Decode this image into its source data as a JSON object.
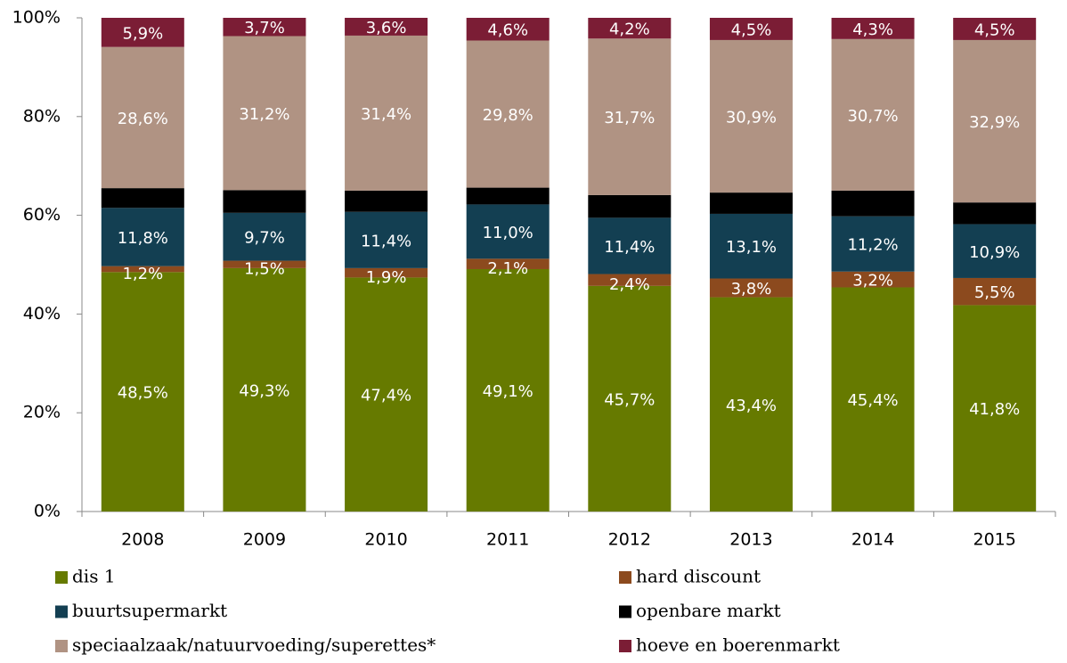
{
  "chart_data": {
    "type": "stacked_bar",
    "categories": [
      "2008",
      "2009",
      "2010",
      "2011",
      "2012",
      "2013",
      "2014",
      "2015"
    ],
    "series": [
      {
        "name": "dis 1",
        "color": "#667a00",
        "values": [
          48.5,
          49.3,
          47.4,
          49.1,
          45.7,
          43.4,
          45.4,
          41.8
        ],
        "value_labels": [
          "48,5%",
          "49,3%",
          "47,4%",
          "49,1%",
          "45,7%",
          "43,4%",
          "45,4%",
          "41,8%"
        ]
      },
      {
        "name": "hard discount",
        "color": "#8c4a1e",
        "values": [
          1.2,
          1.5,
          1.9,
          2.1,
          2.4,
          3.8,
          3.2,
          5.5
        ],
        "value_labels": [
          "1,2%",
          "1,5%",
          "1,9%",
          "2,1%",
          "2,4%",
          "3,8%",
          "3,2%",
          "5,5%"
        ]
      },
      {
        "name": "buurtsupermarkt",
        "color": "#133f52",
        "values": [
          11.8,
          9.7,
          11.4,
          11.0,
          11.4,
          13.1,
          11.2,
          10.9
        ],
        "value_labels": [
          "11,8%",
          "9,7%",
          "11,4%",
          "11,0%",
          "11,4%",
          "13,1%",
          "11,2%",
          "10,9%"
        ]
      },
      {
        "name": "openbare markt",
        "color": "#000000",
        "values": [
          4.0,
          4.6,
          4.3,
          3.4,
          4.6,
          4.3,
          5.2,
          4.4
        ]
      },
      {
        "name": "speciaalzaak/natuurvoeding/superettes*",
        "color": "#b09383",
        "values": [
          28.6,
          31.2,
          31.4,
          29.8,
          31.7,
          30.9,
          30.7,
          32.9
        ],
        "value_labels": [
          "28,6%",
          "31,2%",
          "31,4%",
          "29,8%",
          "31,7%",
          "30,9%",
          "30,7%",
          "32,9%"
        ]
      },
      {
        "name": "hoeve en boerenmarkt",
        "color": "#7b1d35",
        "values": [
          5.9,
          3.7,
          3.6,
          4.6,
          4.2,
          4.5,
          4.3,
          4.5
        ],
        "value_labels": [
          "5,9%",
          "3,7%",
          "3,6%",
          "4,6%",
          "4,2%",
          "4,5%",
          "4,3%",
          "4,5%"
        ]
      }
    ],
    "ylim": [
      0,
      100
    ],
    "yticks": [
      {
        "value": 0,
        "label": "0%"
      },
      {
        "value": 20,
        "label": "20%"
      },
      {
        "value": 40,
        "label": "40%"
      },
      {
        "value": 60,
        "label": "60%"
      },
      {
        "value": 80,
        "label": "80%"
      },
      {
        "value": 100,
        "label": "100%"
      }
    ]
  }
}
